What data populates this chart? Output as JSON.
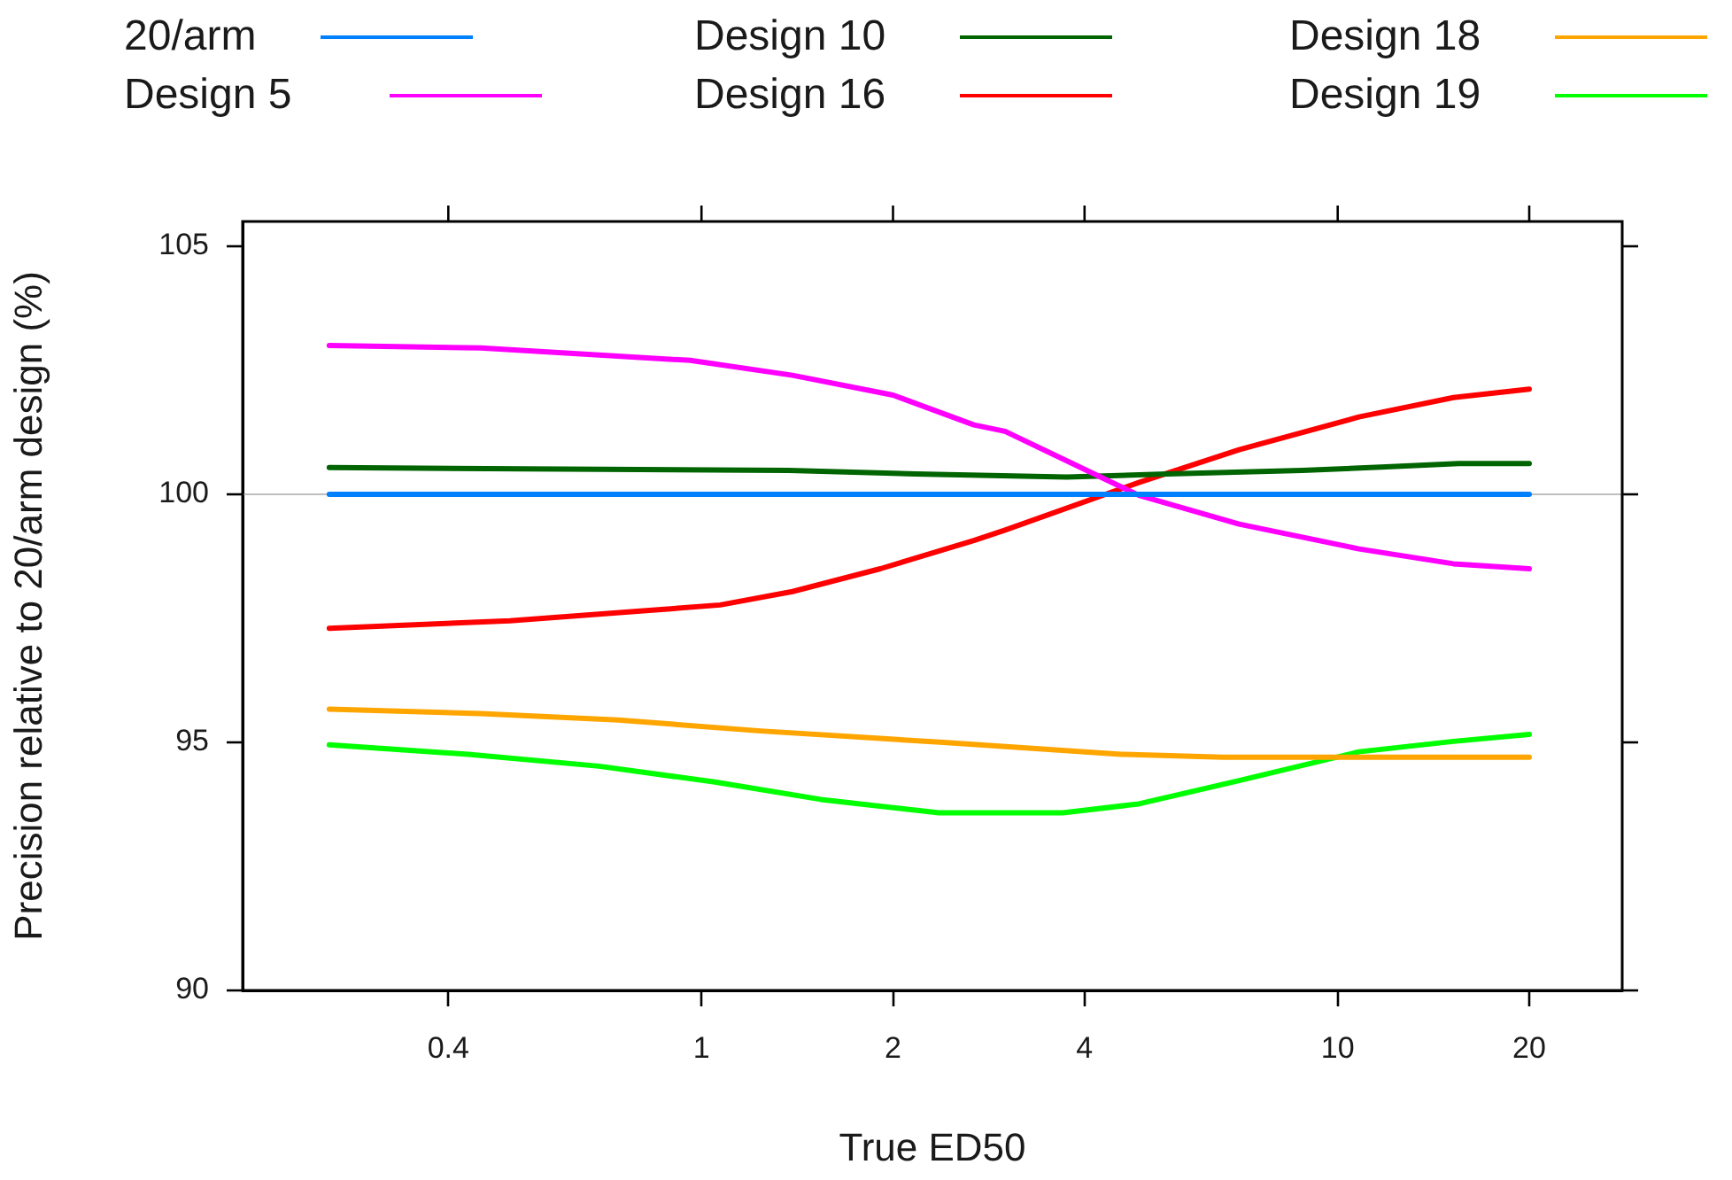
{
  "chart_data": {
    "type": "line",
    "xlabel": "True ED50",
    "ylabel": "Precision relative to 20/arm design (%)",
    "log": "x",
    "xlim": [
      0.19,
      28
    ],
    "xticks": [
      0.4,
      1,
      2,
      4,
      10,
      20
    ],
    "ylim": [
      90,
      105.5
    ],
    "yticks": [
      90,
      95,
      100,
      105
    ],
    "grid": false,
    "legend": "top",
    "marker": "none",
    "line_style": "solid",
    "ref_lines": [
      {
        "axis": "y",
        "value": 100,
        "color": "#bebebe"
      }
    ],
    "series": [
      {
        "name": "20/arm",
        "color": "#0080ff",
        "x": [
          0.26,
          20
        ],
        "values": [
          100,
          100
        ]
      },
      {
        "name": "Design 5",
        "color": "#ff00ff",
        "x": [
          0.26,
          0.45,
          0.96,
          1.39,
          2.0,
          2.68,
          3.0,
          4.87,
          7.0,
          10.8,
          15.2,
          20
        ],
        "values": [
          103.0,
          102.95,
          102.7,
          102.4,
          102.0,
          101.4,
          101.27,
          99.98,
          99.4,
          98.9,
          98.6,
          98.5
        ]
      },
      {
        "name": "Design 10",
        "color": "#006400",
        "x": [
          0.26,
          1.37,
          2.17,
          3.75,
          5.4,
          8.8,
          11.7,
          15.5,
          20
        ],
        "values": [
          100.54,
          100.48,
          100.41,
          100.35,
          100.41,
          100.48,
          100.55,
          100.62,
          100.62
        ]
      },
      {
        "name": "Design 16",
        "color": "#ff0000",
        "x": [
          0.26,
          0.5,
          0.81,
          1.07,
          1.39,
          1.91,
          2.68,
          3.0,
          4.87,
          7.0,
          10.8,
          15.2,
          20
        ],
        "values": [
          97.3,
          97.45,
          97.65,
          97.77,
          98.04,
          98.5,
          99.07,
          99.28,
          100.24,
          100.9,
          101.56,
          101.95,
          102.12
        ]
      },
      {
        "name": "Design 18",
        "color": "#ffa500",
        "x": [
          0.26,
          0.45,
          0.74,
          1.24,
          1.91,
          2.4,
          4.57,
          6.6,
          20
        ],
        "values": [
          95.67,
          95.58,
          95.45,
          95.23,
          95.08,
          95.0,
          94.76,
          94.7,
          94.7
        ]
      },
      {
        "name": "Design 19",
        "color": "#00ff00",
        "x": [
          0.26,
          0.43,
          0.69,
          1.05,
          1.54,
          2.36,
          3.7,
          4.87,
          7.0,
          10.8,
          15.2,
          20
        ],
        "values": [
          94.95,
          94.76,
          94.52,
          94.2,
          93.85,
          93.58,
          93.58,
          93.76,
          94.23,
          94.81,
          95.02,
          95.16
        ]
      }
    ]
  }
}
